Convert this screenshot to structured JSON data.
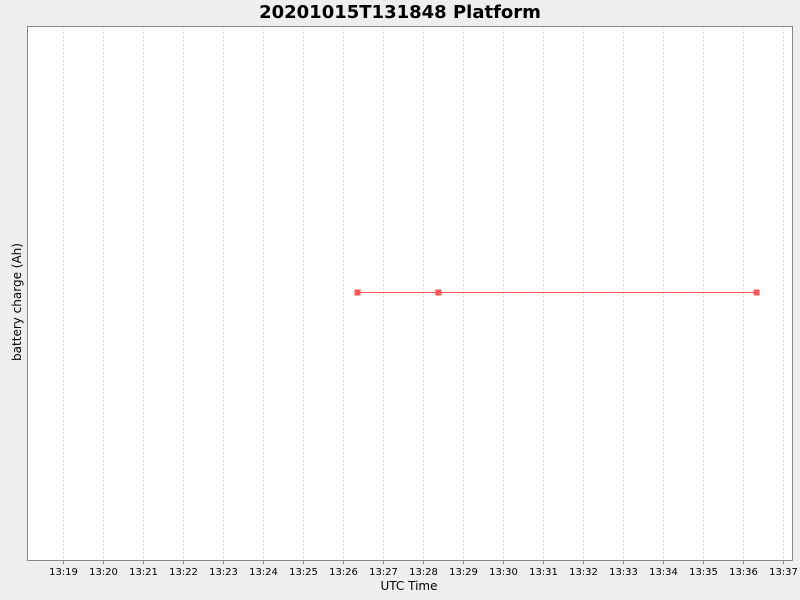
{
  "chart_data": {
    "type": "line",
    "title": "20201015T131848 Platform",
    "xlabel": "UTC Time",
    "ylabel": "battery charge (Ah)",
    "x_ticks": [
      "13:19",
      "13:20",
      "13:21",
      "13:22",
      "13:23",
      "13:24",
      "13:25",
      "13:26",
      "13:27",
      "13:28",
      "13:29",
      "13:30",
      "13:31",
      "13:32",
      "13:33",
      "13:34",
      "13:35",
      "13:36",
      "13:37"
    ],
    "x_tick_minutes": [
      19,
      20,
      21,
      22,
      23,
      24,
      25,
      26,
      27,
      28,
      29,
      30,
      31,
      32,
      33,
      34,
      35,
      36,
      37
    ],
    "xlim": [
      "13:18:08",
      "13:37:13"
    ],
    "grid": true,
    "series": [
      {
        "color": "#ff5555",
        "points": [
          {
            "x": "13:26:22",
            "y": 0
          },
          {
            "x": "13:28:23",
            "y": 0
          },
          {
            "x": "13:36:20",
            "y": 0
          }
        ]
      }
    ]
  }
}
